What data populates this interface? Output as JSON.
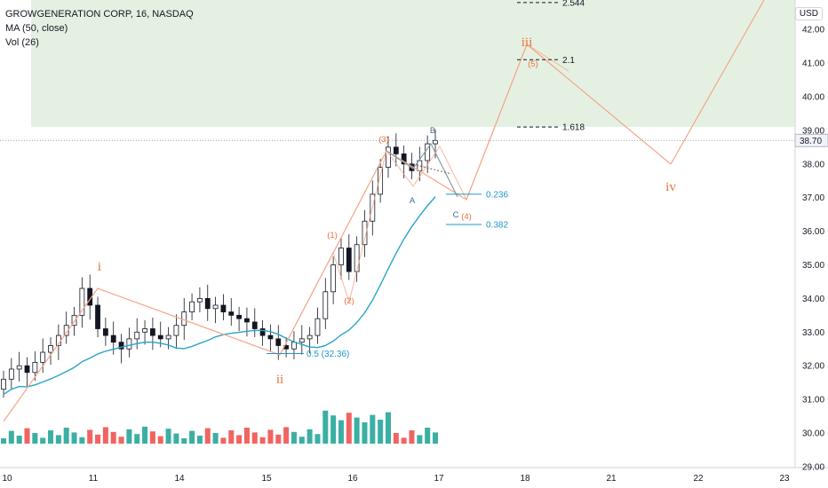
{
  "legend": {
    "symbol_line": "GROWGENERATION CORP, 16, NASDAQ",
    "ma_line": "MA (50, close)",
    "vol_line": "Vol (26)"
  },
  "currency": "USD",
  "price_label": "38.70",
  "colors": {
    "up": "#26a69a",
    "down": "#ef5350",
    "ma": "#2aa4c9",
    "wave": "#f4a58a",
    "wave_label": "#e8743b",
    "fib": "#2196c9",
    "zone": "#dfeedd",
    "correction": "#8f9ba6"
  },
  "chart_data": {
    "type": "candlestick",
    "title": "GROWGENERATION CORP, 16, NASDAQ",
    "x_ticks": [
      "10",
      "11",
      "14",
      "15",
      "16",
      "17",
      "18",
      "21",
      "22",
      "23"
    ],
    "y_ticks": [
      "29.00",
      "30.00",
      "31.00",
      "32.00",
      "33.00",
      "34.00",
      "35.00",
      "36.00",
      "37.00",
      "38.00",
      "39.00",
      "40.00",
      "41.00",
      "42.00"
    ],
    "ylim": [
      28.9,
      43.1
    ],
    "last_price": 38.7,
    "candles_close_approx": [
      31.6,
      31.9,
      32.0,
      31.8,
      32.1,
      32.4,
      32.6,
      32.9,
      33.2,
      33.5,
      34.3,
      33.8,
      33.1,
      32.9,
      32.7,
      32.5,
      32.8,
      33.0,
      33.1,
      32.9,
      32.8,
      32.9,
      33.2,
      33.6,
      33.9,
      34.0,
      33.7,
      33.8,
      33.6,
      33.5,
      33.4,
      33.3,
      33.1,
      32.9,
      32.8,
      32.6,
      32.5,
      32.7,
      32.8,
      32.9,
      33.4,
      34.2,
      35.0,
      35.5,
      34.8,
      35.6,
      36.3,
      37.1,
      37.9,
      38.5,
      38.3,
      38.0,
      37.8,
      38.1,
      38.6,
      38.7
    ],
    "ma_50": {
      "name": "MA (50, close)"
    },
    "volume_series": {
      "name": "Vol (26)"
    },
    "waves": {
      "impulse_labels": [
        "i",
        "ii",
        "iii",
        "iv"
      ],
      "sub_labels": [
        "(1)",
        "(2)",
        "(3)",
        "(4)",
        "(5)"
      ],
      "correction_labels": [
        "A",
        "B",
        "C"
      ]
    },
    "fib_levels": [
      {
        "label": "2.544",
        "value": 42.8
      },
      {
        "label": "2.1",
        "value": 41.1
      },
      {
        "label": "1.618",
        "value": 39.1
      },
      {
        "label": "0.236",
        "value": 37.1
      },
      {
        "label": "0.382",
        "value": 36.2
      },
      {
        "label": "0.5 (32.36)",
        "value": 32.36
      }
    ],
    "target_zone": [
      39.1,
      43.1
    ]
  }
}
